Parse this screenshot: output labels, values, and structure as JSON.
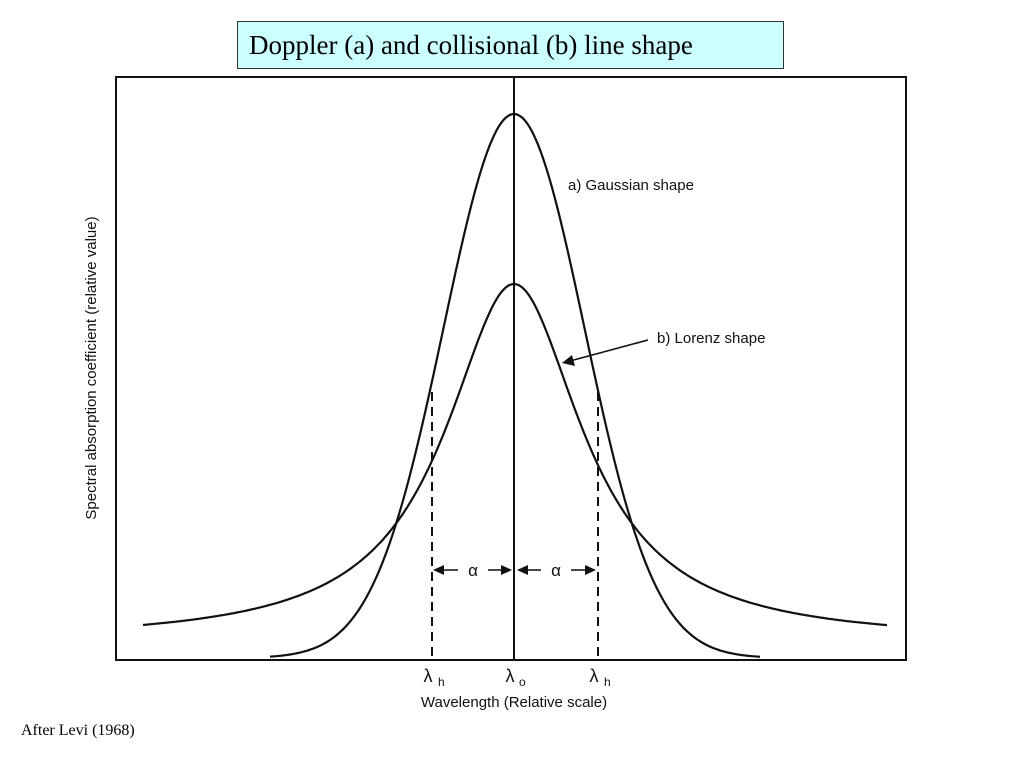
{
  "title": "Doppler (a) and collisional (b) line shape",
  "credit": "After Levi (1968)",
  "figure": {
    "y_axis_label": "Spectral absorption coefficient (relative value)",
    "x_axis_label": "Wavelength (Relative scale)",
    "curve_a_label": "a) Gaussian shape",
    "curve_b_label": "b) Lorenz shape",
    "x_ticks": [
      {
        "main": "λ",
        "sub": "h"
      },
      {
        "main": "λ",
        "sub": "o"
      },
      {
        "main": "λ",
        "sub": "h"
      }
    ],
    "alpha_symbol": "α",
    "line_color": "#111111"
  }
}
